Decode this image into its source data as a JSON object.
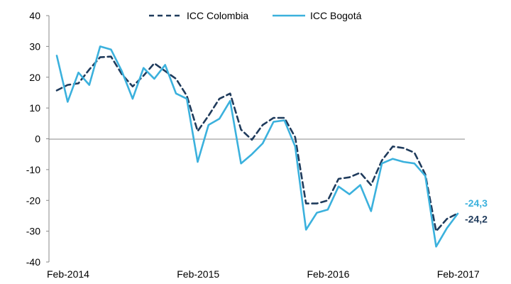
{
  "chart_data": {
    "type": "line",
    "xlabel": "",
    "ylabel": "",
    "ylim": [
      -40,
      40
    ],
    "yticks": [
      -40,
      -30,
      -20,
      -10,
      0,
      10,
      20,
      30,
      40
    ],
    "xtick_labels": [
      "Feb-2014",
      "Feb-2015",
      "Feb-2016",
      "Feb-2017"
    ],
    "x": [
      "Feb-2014",
      "Mar-2014",
      "Apr-2014",
      "May-2014",
      "Jun-2014",
      "Jul-2014",
      "Aug-2014",
      "Sep-2014",
      "Oct-2014",
      "Nov-2014",
      "Dec-2014",
      "Jan-2015",
      "Feb-2015",
      "Mar-2015",
      "Apr-2015",
      "May-2015",
      "Jun-2015",
      "Jul-2015",
      "Aug-2015",
      "Sep-2015",
      "Oct-2015",
      "Nov-2015",
      "Dec-2015",
      "Jan-2016",
      "Feb-2016",
      "Mar-2016",
      "Apr-2016",
      "May-2016",
      "Jun-2016",
      "Jul-2016",
      "Aug-2016",
      "Sep-2016",
      "Oct-2016",
      "Nov-2016",
      "Dec-2016",
      "Jan-2017",
      "Feb-2017",
      "Mar-2017"
    ],
    "grid": false,
    "legend_position": "top",
    "series": [
      {
        "name": "ICC Colombia",
        "color": "#1f3b5c",
        "dash": true,
        "values": [
          15.7,
          17.5,
          18.0,
          22.5,
          26.5,
          26.7,
          21.0,
          17.0,
          20.5,
          24.5,
          22.0,
          19.5,
          14.0,
          2.5,
          7.5,
          13.0,
          14.7,
          3.0,
          -0.3,
          4.5,
          6.8,
          6.8,
          0.5,
          -21.0,
          -21.0,
          -20.0,
          -13.0,
          -12.5,
          -11.0,
          -15.0,
          -7.0,
          -2.5,
          -3.0,
          -4.5,
          -11.5,
          -30.0,
          -26.0,
          -24.2
        ],
        "end_label": "-24,2"
      },
      {
        "name": "ICC Bogotá",
        "color": "#3bb1dd",
        "dash": false,
        "values": [
          27.0,
          12.0,
          21.5,
          17.5,
          30.0,
          29.0,
          22.0,
          13.0,
          23.0,
          19.5,
          24.0,
          14.7,
          13.0,
          -7.5,
          4.5,
          6.5,
          12.3,
          -8.0,
          -5.0,
          -1.5,
          5.5,
          6.0,
          -2.5,
          -29.5,
          -24.0,
          -23.0,
          -15.5,
          -18.0,
          -15.0,
          -23.5,
          -8.0,
          -6.5,
          -7.5,
          -8.0,
          -12.0,
          -35.0,
          -29.0,
          -24.3
        ],
        "end_label": "-24,3"
      }
    ]
  }
}
